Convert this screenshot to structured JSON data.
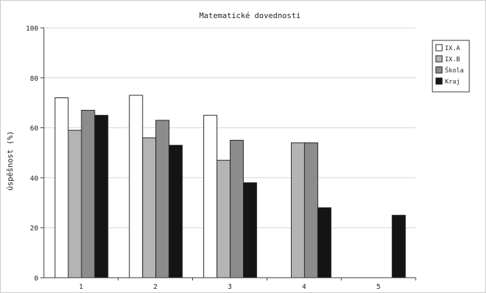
{
  "chart_data": {
    "type": "bar",
    "title": "Matematické dovednosti",
    "xlabel": "",
    "ylabel": "úspěšnost (%)",
    "categories": [
      "1",
      "2",
      "3",
      "4",
      "5"
    ],
    "ylim": [
      0,
      100
    ],
    "yticks": [
      0,
      20,
      40,
      60,
      80,
      100
    ],
    "grid": true,
    "legend_position": "right",
    "series": [
      {
        "name": "IX.A",
        "color": "#ffffff",
        "values": [
          72,
          73,
          65,
          null,
          null
        ]
      },
      {
        "name": "IX.B",
        "color": "#b4b4b4",
        "values": [
          59,
          56,
          47,
          54,
          null
        ]
      },
      {
        "name": "Škola",
        "color": "#8c8c8c",
        "values": [
          67,
          63,
          55,
          54,
          null
        ]
      },
      {
        "name": "Kraj",
        "color": "#141414",
        "values": [
          65,
          53,
          38,
          28,
          25
        ]
      }
    ]
  }
}
